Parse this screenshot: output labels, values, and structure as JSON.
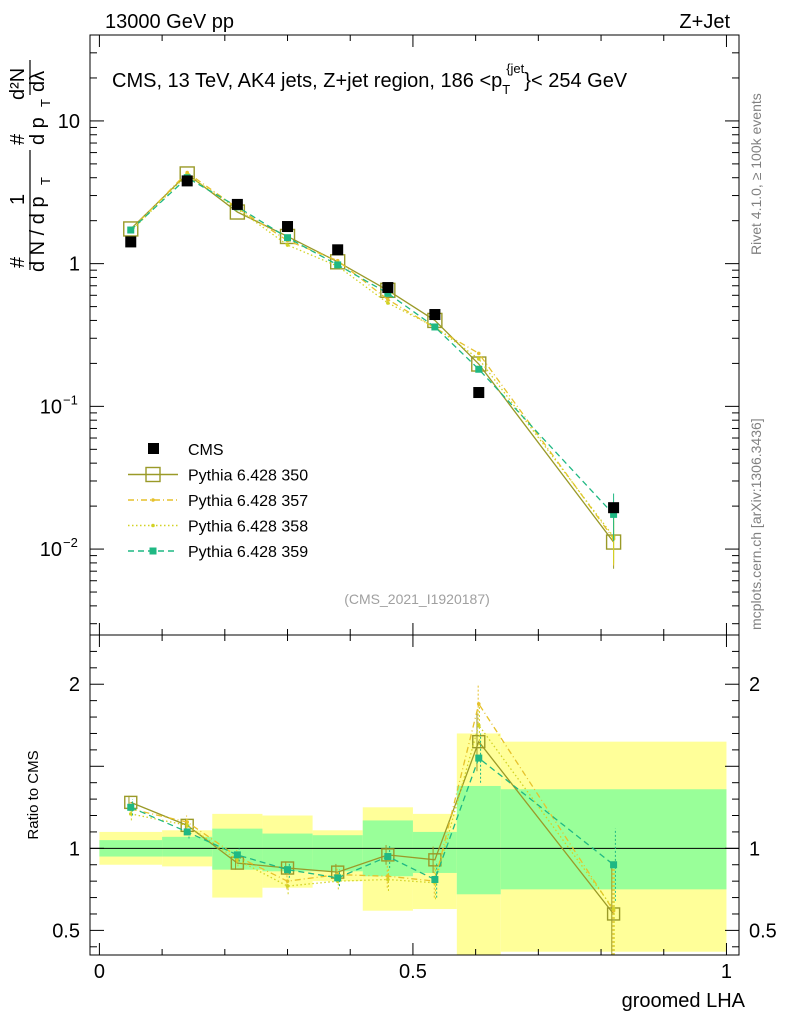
{
  "header": {
    "left": "13000 GeV pp",
    "right": "Z+Jet"
  },
  "side_labels": {
    "rivet": "Rivet 4.1.0, ≥ 100k events",
    "mcplots": "mcplots.cern.ch [arXiv:1306.3436]"
  },
  "chart_data": {
    "type": "scatter",
    "title": {
      "prefix": "CMS, 13 TeV, AK4 jets, Z+jet region, 186 <",
      "p": "p",
      "sub": "T",
      "sup": "{jet",
      "close": "}",
      "suffix": "< 254 GeV"
    },
    "analysis_id": "(CMS_2021_I1920187)",
    "xlabel": "groomed LHA",
    "ylabel": {
      "hash1": "#",
      "one": "1",
      "dN": "d N / d p",
      "sub_T": "T",
      "hash2": "#",
      "dpT": "d p",
      "sub_T2": "T",
      "d2N": "d²N",
      "dlambda": "dλ"
    },
    "ratio_ylabel": "Ratio to CMS",
    "x_range": [
      -0.015,
      1.02
    ],
    "main_yrange_log": [
      0.0025,
      40
    ],
    "ratio_yrange": [
      0.35,
      2.3
    ],
    "x_ticks": [
      {
        "v": 0,
        "label": "0"
      },
      {
        "v": 0.5,
        "label": "0.5"
      },
      {
        "v": 1,
        "label": "1"
      }
    ],
    "main_y_ticks": [
      {
        "v": 10,
        "label": "10"
      },
      {
        "v": 1,
        "label": "1"
      },
      {
        "v": 0.1,
        "label": "10",
        "exp": "−1"
      },
      {
        "v": 0.01,
        "label": "10",
        "exp": "−2"
      }
    ],
    "ratio_y_ticks": [
      {
        "v": 0.5,
        "label": "0.5"
      },
      {
        "v": 1,
        "label": "1"
      },
      {
        "v": 2,
        "label": "2"
      }
    ],
    "bins": [
      {
        "lo": 0.0,
        "hi": 0.1
      },
      {
        "lo": 0.1,
        "hi": 0.18
      },
      {
        "lo": 0.18,
        "hi": 0.26
      },
      {
        "lo": 0.26,
        "hi": 0.34
      },
      {
        "lo": 0.34,
        "hi": 0.42
      },
      {
        "lo": 0.42,
        "hi": 0.5
      },
      {
        "lo": 0.5,
        "hi": 0.57
      },
      {
        "lo": 0.57,
        "hi": 0.64
      },
      {
        "lo": 0.64,
        "hi": 1.0
      }
    ],
    "x": [
      0.05,
      0.14,
      0.22,
      0.3,
      0.38,
      0.46,
      0.535,
      0.605,
      0.82
    ],
    "data": {
      "name": "CMS",
      "values": [
        1.42,
        3.8,
        2.6,
        1.82,
        1.25,
        0.68,
        0.44,
        0.125,
        0.0195
      ]
    },
    "series": [
      {
        "name": "Pythia 6.428 350",
        "color": "#9a9a28",
        "style": "solid-open-square",
        "values": [
          1.75,
          4.25,
          2.3,
          1.55,
          1.03,
          0.65,
          0.4,
          0.198,
          0.0112
        ],
        "ratio": [
          1.28,
          1.14,
          0.91,
          0.88,
          0.855,
          0.96,
          0.93,
          1.65,
          0.6
        ],
        "ratio_err": [
          0.04,
          0.04,
          0.04,
          0.04,
          0.05,
          0.06,
          0.08,
          0.18,
          0.3
        ]
      },
      {
        "name": "Pythia 6.428 357",
        "color": "#e6c12b",
        "style": "dashdot-small",
        "values": [
          1.72,
          4.35,
          2.45,
          1.45,
          1.05,
          0.56,
          0.355,
          0.235,
          0.0118
        ],
        "ratio": [
          1.24,
          1.16,
          0.95,
          0.8,
          0.84,
          0.83,
          0.8,
          1.88,
          0.62
        ],
        "ratio_err": [
          0.04,
          0.04,
          0.04,
          0.05,
          0.05,
          0.07,
          0.1,
          0.12,
          0.3
        ]
      },
      {
        "name": "Pythia 6.428 358",
        "color": "#d2d224",
        "style": "dotted-small",
        "values": [
          1.68,
          4.2,
          2.42,
          1.35,
          0.96,
          0.53,
          0.36,
          0.215,
          0.0122
        ],
        "ratio": [
          1.21,
          1.14,
          0.93,
          0.77,
          0.8,
          0.81,
          0.79,
          1.75,
          0.63
        ],
        "ratio_err": [
          0.04,
          0.04,
          0.04,
          0.05,
          0.05,
          0.07,
          0.1,
          0.12,
          0.3
        ]
      },
      {
        "name": "Pythia 6.428 359",
        "color": "#1fb883",
        "style": "dashed-filled-square",
        "values": [
          1.72,
          4.0,
          2.5,
          1.52,
          0.98,
          0.62,
          0.36,
          0.182,
          0.0175
        ],
        "ratio": [
          1.25,
          1.1,
          0.96,
          0.87,
          0.82,
          0.95,
          0.81,
          1.55,
          0.9
        ],
        "ratio_err": [
          0.05,
          0.04,
          0.04,
          0.05,
          0.05,
          0.07,
          0.11,
          0.15,
          0.22
        ]
      }
    ],
    "band_inner": [
      [
        0.95,
        1.05
      ],
      [
        0.95,
        1.07
      ],
      [
        0.87,
        1.12
      ],
      [
        0.86,
        1.09
      ],
      [
        0.86,
        1.08
      ],
      [
        0.83,
        1.17
      ],
      [
        0.85,
        1.1
      ],
      [
        0.72,
        1.38
      ],
      [
        0.75,
        1.36
      ]
    ],
    "band_outer": [
      [
        0.9,
        1.1
      ],
      [
        0.89,
        1.11
      ],
      [
        0.7,
        1.21
      ],
      [
        0.76,
        1.2
      ],
      [
        0.8,
        1.11
      ],
      [
        0.62,
        1.25
      ],
      [
        0.63,
        1.21
      ],
      [
        0.35,
        1.7
      ],
      [
        0.37,
        1.65
      ]
    ],
    "legend_position": "lower-left"
  }
}
